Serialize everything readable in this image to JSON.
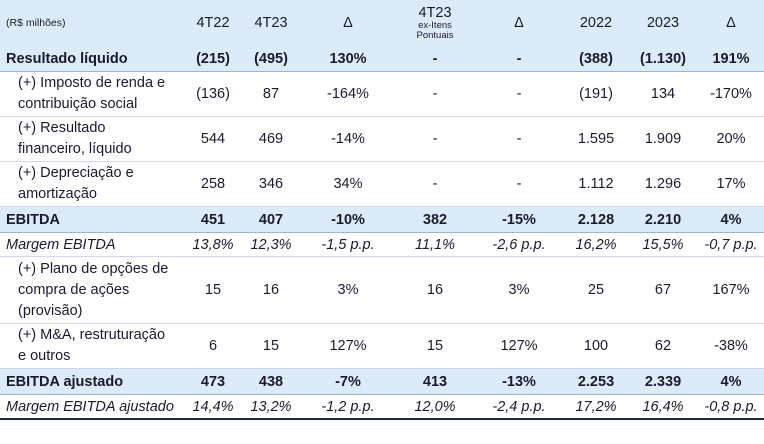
{
  "header": {
    "unit": "(R$ milhões)",
    "col_4t22": "4T22",
    "col_4t23": "4T23",
    "col_delta1": "Δ",
    "col_exitens_main": "4T23",
    "col_exitens_sub1": "ex-Itens",
    "col_exitens_sub2": "Pontuais",
    "col_delta2": "Δ",
    "col_2022": "2022",
    "col_2023": "2023",
    "col_delta3": "Δ"
  },
  "rows": [
    {
      "label": "Resultado líquido",
      "cells": [
        "(215)",
        "(495)",
        "130%",
        "-",
        "-",
        "(388)",
        "(1.130)",
        "191%"
      ]
    },
    {
      "label_l1": "(+) Imposto de renda e",
      "label_l2": "contribuição social",
      "cells": [
        "(136)",
        "87",
        "-164%",
        "-",
        "-",
        "(191)",
        "134",
        "-170%"
      ]
    },
    {
      "label_l1": "(+) Resultado",
      "label_l2": "financeiro, líquido",
      "cells": [
        "544",
        "469",
        "-14%",
        "-",
        "-",
        "1.595",
        "1.909",
        "20%"
      ]
    },
    {
      "label_l1": "(+) Depreciação e",
      "label_l2": "amortização",
      "cells": [
        "258",
        "346",
        "34%",
        "-",
        "-",
        "1.112",
        "1.296",
        "17%"
      ]
    },
    {
      "label": "EBITDA",
      "cells": [
        "451",
        "407",
        "-10%",
        "382",
        "-15%",
        "2.128",
        "2.210",
        "4%"
      ]
    },
    {
      "label": "Margem EBITDA",
      "cells": [
        "13,8%",
        "12,3%",
        "-1,5 p.p.",
        "11,1%",
        "-2,6 p.p.",
        "16,2%",
        "15,5%",
        "-0,7 p.p."
      ]
    },
    {
      "label_l1": "(+) Plano de opções de",
      "label_l2": "compra de ações",
      "label_l3": "(provisão)",
      "cells": [
        "15",
        "16",
        "3%",
        "16",
        "3%",
        "25",
        "67",
        "167%"
      ]
    },
    {
      "label_l1": "(+) M&A, restruturação",
      "label_l2": "e outros",
      "cells": [
        "6",
        "15",
        "127%",
        "15",
        "127%",
        "100",
        "62",
        "-38%"
      ]
    },
    {
      "label": "EBITDA ajustado",
      "cells": [
        "473",
        "438",
        "-7%",
        "413",
        "-13%",
        "2.253",
        "2.339",
        "4%"
      ]
    },
    {
      "label": "Margem EBITDA ajustado",
      "cells": [
        "14,4%",
        "13,2%",
        "-1,2 p.p.",
        "12,0%",
        "-2,4 p.p.",
        "17,2%",
        "16,4%",
        "-0,8 p.p."
      ]
    }
  ]
}
